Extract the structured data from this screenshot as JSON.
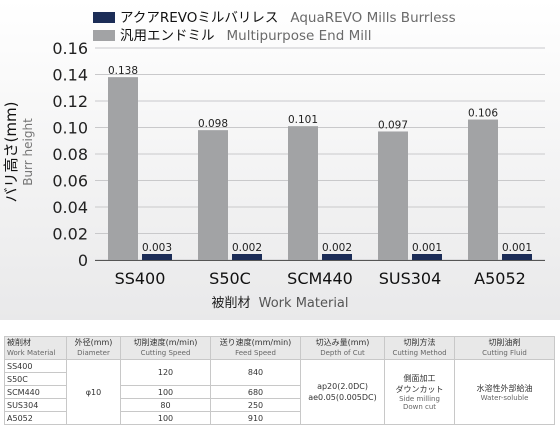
{
  "chart_data": {
    "type": "bar",
    "categories": [
      "SS400",
      "S50C",
      "SCM440",
      "SUS304",
      "A5052"
    ],
    "series": [
      {
        "name": "アクアREVOミルバリレス AquaREVO Mills Burrless",
        "color": "#1c2d57",
        "values": [
          0.003,
          0.002,
          0.002,
          0.001,
          0.001
        ]
      },
      {
        "name": "汎用エンドミル Multipurpose End Mill",
        "color": "#a2a3a5",
        "values": [
          0.138,
          0.098,
          0.101,
          0.097,
          0.106
        ]
      }
    ],
    "legend": [
      {
        "jp": "アクアREVOミルバリレス",
        "en": "AquaREVO Mills Burrless",
        "color": "#1c2d57"
      },
      {
        "jp": "汎用エンドミル",
        "en": "Multipurpose End Mill",
        "color": "#a2a3a5"
      }
    ],
    "value_labels": {
      "revo": [
        "0.003",
        "0.002",
        "0.002",
        "0.001",
        "0.001"
      ],
      "general": [
        "0.138",
        "0.098",
        "0.101",
        "0.097",
        "0.106"
      ]
    },
    "yticks": [
      "0",
      "0.02",
      "0.04",
      "0.06",
      "0.08",
      "0.10",
      "0.12",
      "0.14",
      "0.16"
    ],
    "ylim": [
      0,
      0.16
    ],
    "ylabel_jp": "バリ高さ(mm)",
    "ylabel_en": "Burr height",
    "xlabel_jp": "被削材",
    "xlabel_en": "Work Material",
    "grid": true,
    "legend_position": "top-left"
  },
  "table": {
    "headers": [
      {
        "jp": "被削材",
        "en": "Work Material"
      },
      {
        "jp": "外径(mm)",
        "en": "Diameter"
      },
      {
        "jp": "切削速度(m/min)",
        "en": "Cutting Speed"
      },
      {
        "jp": "送り速度(mm/min)",
        "en": "Feed Speed"
      },
      {
        "jp": "切込み量(mm)",
        "en": "Depth of Cut"
      },
      {
        "jp": "切削方法",
        "en": "Cutting Method"
      },
      {
        "jp": "切削油剤",
        "en": "Cutting Fluid"
      }
    ],
    "materials": [
      "SS400",
      "S50C",
      "SCM440",
      "SUS304",
      "A5052"
    ],
    "diameter": "φ10",
    "cutting_speeds": [
      "120",
      "100",
      "80",
      "100"
    ],
    "feed_speeds": [
      "840",
      "680",
      "250",
      "910"
    ],
    "depth_line1": "ap20(2.0DC)",
    "depth_line2": "ae0.05(0.005DC)",
    "method_jp1": "側面加工",
    "method_jp2": "ダウンカット",
    "method_en1": "Side milling",
    "method_en2": "Down cut",
    "fluid_jp": "水溶性外部給油",
    "fluid_en": "Water-soluble"
  }
}
